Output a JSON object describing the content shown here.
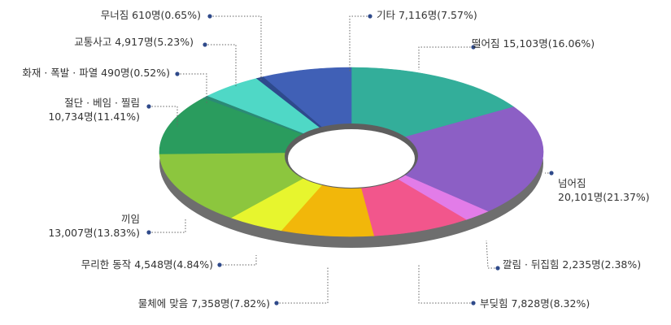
{
  "chart_data": {
    "type": "pie",
    "title": "",
    "unit": "명",
    "slices": [
      {
        "name": "떨어짐",
        "label_lines": [
          "떨어짐 15,103명(16.06%)"
        ],
        "value": 15103,
        "percent": 16.06,
        "color": "#33ae9a"
      },
      {
        "name": "넘어짐",
        "label_lines": [
          "넘어짐",
          "20,101명(21.37%)"
        ],
        "value": 20101,
        "percent": 21.37,
        "color": "#8c5fc5"
      },
      {
        "name": "깔림 · 뒤집힘",
        "label_lines": [
          "깔림 · 뒤집힘 2,235명(2.38%)"
        ],
        "value": 2235,
        "percent": 2.38,
        "color": "#e27ce8"
      },
      {
        "name": "부딪힘",
        "label_lines": [
          "부딪힘 7,828명(8.32%)"
        ],
        "value": 7828,
        "percent": 8.32,
        "color": "#f2568c"
      },
      {
        "name": "물체에 맞음",
        "label_lines": [
          "물체에 맞음 7,358명(7.82%)"
        ],
        "value": 7358,
        "percent": 7.82,
        "color": "#f2b70a"
      },
      {
        "name": "무리한 동작",
        "label_lines": [
          "무리한 동작 4,548명(4.84%)"
        ],
        "value": 4548,
        "percent": 4.84,
        "color": "#e7f52e"
      },
      {
        "name": "끼임",
        "label_lines": [
          "끼임",
          "13,007명(13.83%)"
        ],
        "value": 13007,
        "percent": 13.83,
        "color": "#8cc63e"
      },
      {
        "name": "절단 · 베임 · 찔림",
        "label_lines": [
          "절단 · 베임 · 찔림",
          "10,734명(11.41%)"
        ],
        "value": 10734,
        "percent": 11.41,
        "color": "#2a9c5e"
      },
      {
        "name": "화재 · 폭발 · 파열",
        "label_lines": [
          "화재 · 폭발 · 파열 490명(0.52%)"
        ],
        "value": 490,
        "percent": 0.52,
        "color": "#2b8a76"
      },
      {
        "name": "교통사고",
        "label_lines": [
          "교통사고 4,917명(5.23%)"
        ],
        "value": 4917,
        "percent": 5.23,
        "color": "#4fd8c6"
      },
      {
        "name": "무너짐",
        "label_lines": [
          "무너짐 610명(0.65%)"
        ],
        "value": 610,
        "percent": 0.65,
        "color": "#2e4a8c"
      },
      {
        "name": "기타",
        "label_lines": [
          "기타 7,116명(7.57%)"
        ],
        "value": 7116,
        "percent": 7.57,
        "color": "#4060b6"
      }
    ],
    "legend": "none",
    "style": "3d-donut"
  }
}
